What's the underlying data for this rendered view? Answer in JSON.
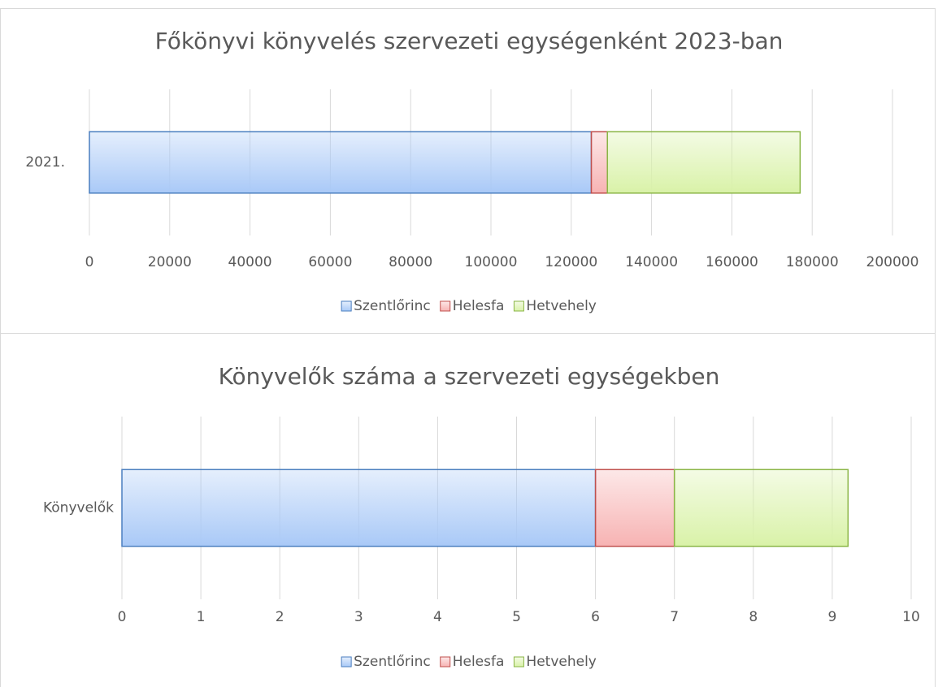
{
  "chart_data": [
    {
      "type": "bar",
      "orientation": "horizontal",
      "stacked": true,
      "title": "Főkönyvi könyvelés szervezeti egységenként 2023-ban",
      "categories": [
        "2021."
      ],
      "series": [
        {
          "name": "Szentlőrinc",
          "color": "#a9c9f7",
          "edge_color": "#4a7ebf",
          "values": [
            125000
          ]
        },
        {
          "name": "Helesfa",
          "color": "#f7b3b3",
          "edge_color": "#c0504d",
          "values": [
            4000
          ]
        },
        {
          "name": "Hetvehely",
          "color": "#d9f2a8",
          "edge_color": "#8ab545",
          "values": [
            48000
          ]
        }
      ],
      "xlim": [
        0,
        200000
      ],
      "xticks": [
        0,
        20000,
        40000,
        60000,
        80000,
        100000,
        120000,
        140000,
        160000,
        180000,
        200000
      ],
      "grid": true,
      "legend": "bottom"
    },
    {
      "type": "bar",
      "orientation": "horizontal",
      "stacked": true,
      "title": "Könyvelők száma a szervezeti egységekben",
      "categories": [
        "Könyvelők"
      ],
      "series": [
        {
          "name": "Szentlőrinc",
          "color": "#a9c9f7",
          "edge_color": "#4a7ebf",
          "values": [
            6
          ]
        },
        {
          "name": "Helesfa",
          "color": "#f7b3b3",
          "edge_color": "#c0504d",
          "values": [
            1
          ]
        },
        {
          "name": "Hetvehely",
          "color": "#d9f2a8",
          "edge_color": "#8ab545",
          "values": [
            2.2
          ]
        }
      ],
      "xlim": [
        0,
        10
      ],
      "xticks": [
        0,
        1,
        2,
        3,
        4,
        5,
        6,
        7,
        8,
        9,
        10
      ],
      "grid": true,
      "legend": "bottom"
    }
  ]
}
